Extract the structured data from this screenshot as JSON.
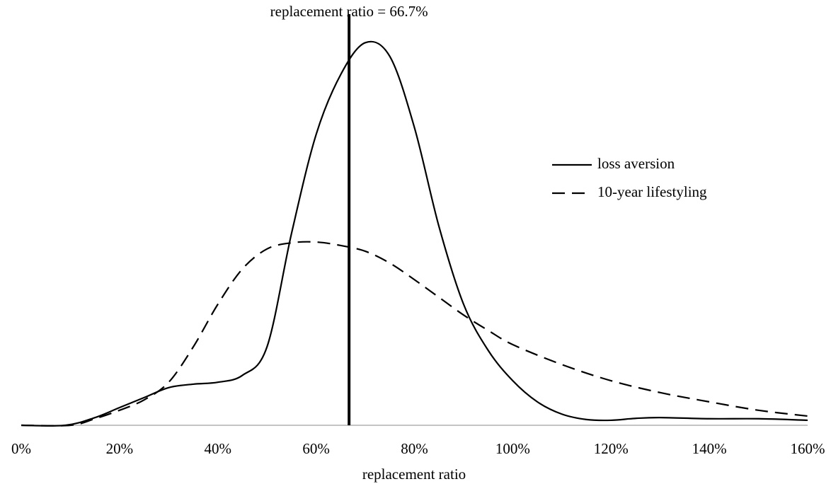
{
  "chart_data": {
    "type": "line",
    "x_label": "replacement ratio",
    "xlim": [
      0,
      160
    ],
    "xticks": [
      {
        "value": 0,
        "label": "0%"
      },
      {
        "value": 20,
        "label": "20%"
      },
      {
        "value": 40,
        "label": "40%"
      },
      {
        "value": 60,
        "label": "60%"
      },
      {
        "value": 80,
        "label": "80%"
      },
      {
        "value": 100,
        "label": "100%"
      },
      {
        "value": 120,
        "label": "120%"
      },
      {
        "value": 140,
        "label": "140%"
      },
      {
        "value": 160,
        "label": "160%"
      }
    ],
    "ylim": [
      0,
      105
    ],
    "legend": "right",
    "reference_line": {
      "x": 66.7,
      "label": "replacement ratio = 66.7%",
      "color": "#000000"
    },
    "series": [
      {
        "name": "loss aversion",
        "color": "#000000",
        "line_style": "solid",
        "x": [
          0,
          9,
          15,
          20,
          25,
          30,
          35,
          40,
          45,
          50,
          55,
          60,
          65,
          70,
          75,
          80,
          85,
          90,
          95,
          100,
          105,
          110,
          115,
          120,
          125,
          130,
          140,
          150,
          160
        ],
        "values": [
          0,
          0,
          2,
          4.6,
          7.2,
          9.8,
          10.7,
          11.2,
          13,
          20.4,
          50,
          75.7,
          91.3,
          99.6,
          96,
          77.5,
          51.7,
          31.5,
          19.5,
          11.6,
          6.1,
          2.9,
          1.5,
          1.3,
          1.8,
          2,
          1.7,
          1.7,
          1.3
        ]
      },
      {
        "name": "10-year lifestyling",
        "color": "#000000",
        "line_style": "dashed",
        "x": [
          0,
          10,
          15,
          20,
          25,
          30,
          35,
          40,
          45,
          50,
          55,
          60,
          65,
          70,
          75,
          80,
          85,
          90,
          95,
          100,
          110,
          120,
          130,
          140,
          150,
          160
        ],
        "values": [
          0,
          0,
          1.7,
          3.9,
          6.6,
          11.2,
          20.4,
          31.5,
          40.7,
          45.9,
          47.5,
          47.7,
          46.8,
          45.3,
          42.2,
          37.9,
          33.3,
          28.7,
          24.7,
          21,
          15.8,
          11.6,
          8.5,
          6.1,
          3.9,
          2.4
        ]
      }
    ]
  }
}
